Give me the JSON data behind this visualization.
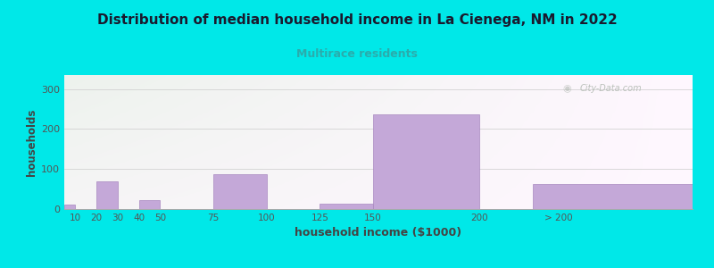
{
  "title": "Distribution of median household income in La Cienega, NM in 2022",
  "subtitle": "Multirace residents",
  "xlabel": "household income ($1000)",
  "ylabel": "households",
  "title_fontsize": 11,
  "subtitle_fontsize": 9,
  "subtitle_color": "#2aacac",
  "bar_color": "#c4a8d8",
  "bar_edge_color": "#a888c0",
  "background_outer": "#00e8e8",
  "background_inner": "#f2f8ec",
  "grid_color": "#cccccc",
  "tick_label_color": "#555555",
  "axis_label_color": "#444444",
  "watermark": "City-Data.com",
  "bar_lefts": [
    5,
    15,
    20,
    30,
    40,
    50,
    75,
    100,
    125,
    150,
    225
  ],
  "bar_widths": [
    5,
    5,
    10,
    10,
    10,
    25,
    25,
    25,
    25,
    50,
    75
  ],
  "bar_heights": [
    12,
    0,
    70,
    0,
    22,
    0,
    87,
    0,
    14,
    237,
    63
  ],
  "xtick_positions": [
    10,
    20,
    30,
    40,
    50,
    75,
    100,
    125,
    150,
    200,
    237
  ],
  "xtick_labels": [
    "10",
    "20",
    "30",
    "40",
    "50",
    "75",
    "100",
    "125",
    "150",
    "200",
    "> 200"
  ],
  "xlim": [
    5,
    300
  ],
  "ylim": [
    0,
    335
  ],
  "yticks": [
    0,
    100,
    200,
    300
  ]
}
